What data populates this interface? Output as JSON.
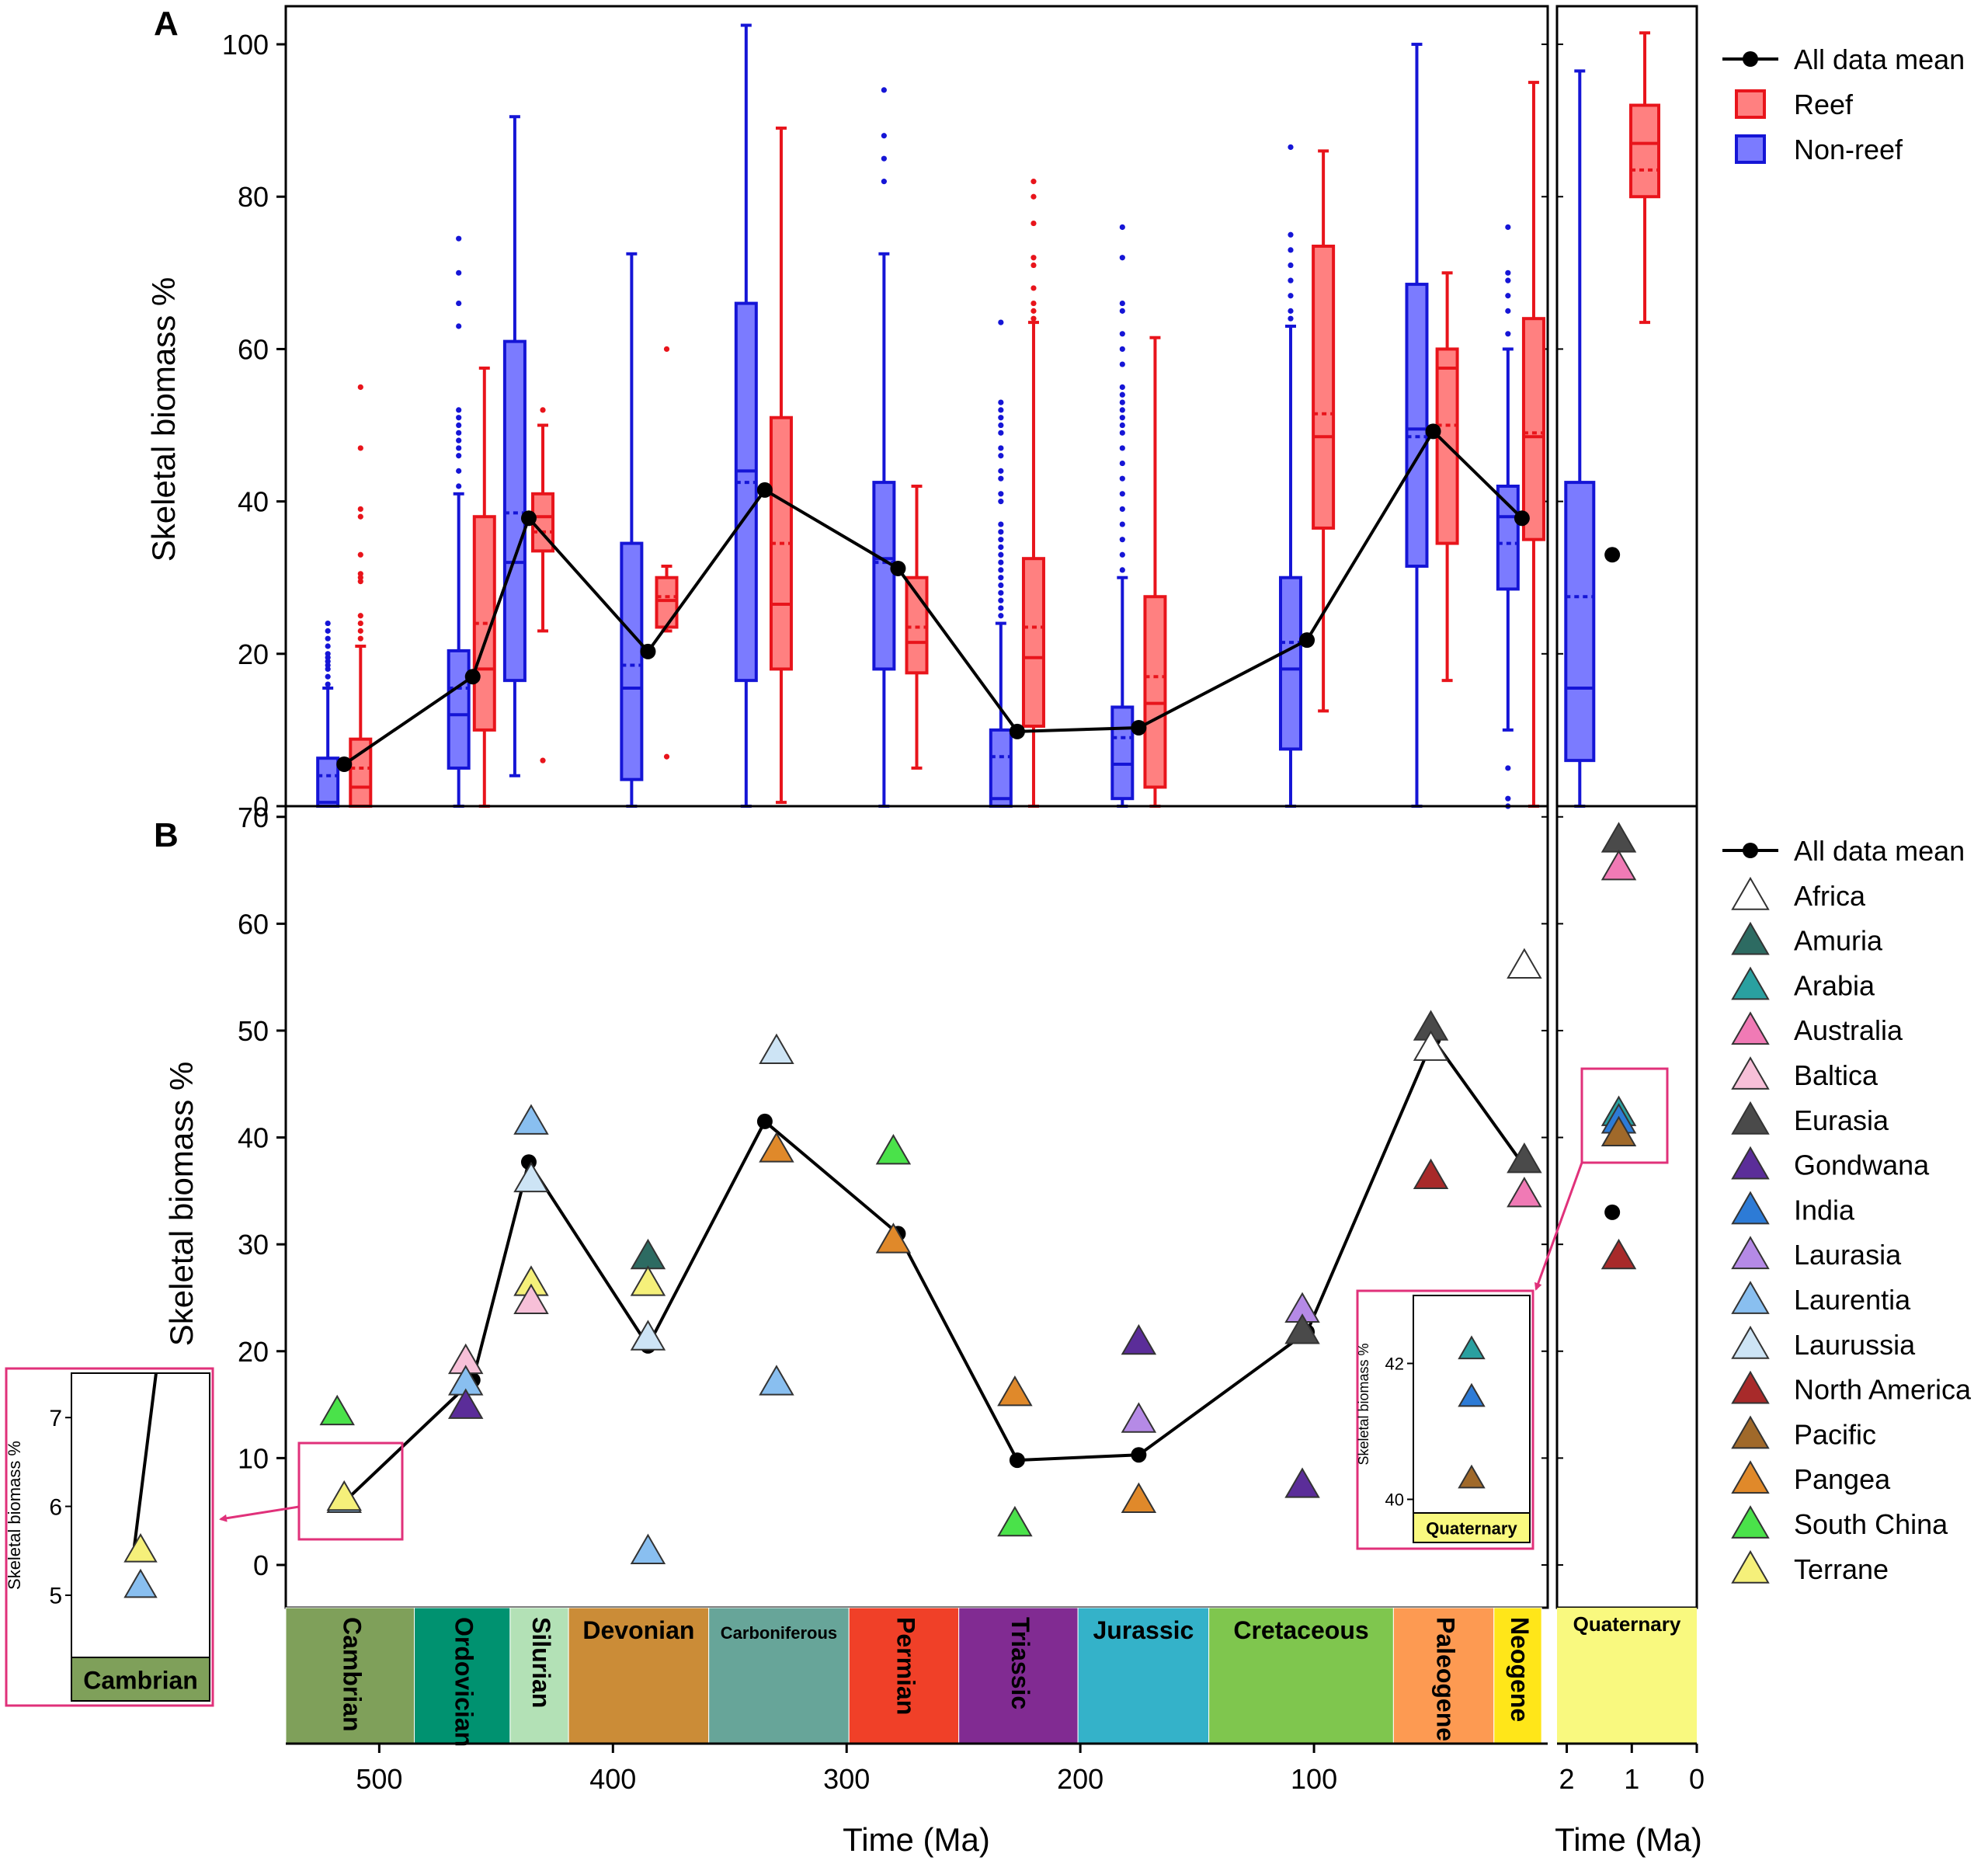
{
  "chart_data": [
    {
      "panel": "A",
      "type": "box",
      "ylabel": "Skeletal biomass %",
      "ylim": [
        0,
        105
      ],
      "yticks": [
        0,
        20,
        40,
        60,
        80,
        100
      ],
      "xlim": [
        540,
        0
      ],
      "legend": [
        {
          "label": "All data mean",
          "kind": "mean"
        },
        {
          "label": "Reef",
          "kind": "reef"
        },
        {
          "label": "Non-reef",
          "kind": "nonreef"
        }
      ],
      "colors": {
        "reef_fill": "#ff8080",
        "reef_edge": "#e8141b",
        "nonreef_fill": "#7b7bff",
        "nonreef_edge": "#1515d6"
      },
      "boxes": [
        {
          "t": 522,
          "group": "nonreef",
          "whiskerLow": 0,
          "q1": 0,
          "median": 0.5,
          "mean": 4,
          "q3": 6.3,
          "whiskerHigh": 15.5,
          "outliers": [
            16,
            17,
            18,
            18.5,
            19,
            19.5,
            20,
            21,
            22,
            23,
            24
          ]
        },
        {
          "t": 508,
          "group": "reef",
          "whiskerLow": 0,
          "q1": 0,
          "median": 2.5,
          "mean": 5,
          "q3": 8.8,
          "whiskerHigh": 21,
          "outliers": [
            22,
            23,
            24,
            25,
            29.5,
            30,
            30.5,
            33,
            38,
            39,
            47,
            55
          ]
        },
        {
          "t": 466,
          "group": "nonreef",
          "whiskerLow": 0,
          "q1": 5,
          "median": 12,
          "mean": 15.5,
          "q3": 20.4,
          "whiskerHigh": 41,
          "outliers": [
            42,
            44,
            46,
            47,
            48,
            49,
            50,
            51,
            52,
            63,
            66,
            70,
            74.5
          ]
        },
        {
          "t": 455,
          "group": "reef",
          "whiskerLow": 0,
          "q1": 10,
          "median": 18,
          "mean": 24,
          "q3": 38,
          "whiskerHigh": 57.5,
          "outliers": []
        },
        {
          "t": 442,
          "group": "nonreef",
          "whiskerLow": 4,
          "q1": 16.5,
          "median": 32,
          "mean": 38.5,
          "q3": 61,
          "whiskerHigh": 90.5,
          "outliers": []
        },
        {
          "t": 430,
          "group": "reef",
          "whiskerLow": 23,
          "q1": 33.5,
          "median": 38,
          "mean": 36,
          "q3": 41,
          "whiskerHigh": 50,
          "outliers": [
            6,
            52
          ]
        },
        {
          "t": 392,
          "group": "nonreef",
          "whiskerLow": 0,
          "q1": 3.5,
          "median": 15.5,
          "mean": 18.5,
          "q3": 34.5,
          "whiskerHigh": 72.5,
          "outliers": []
        },
        {
          "t": 377,
          "group": "reef",
          "whiskerLow": 23,
          "q1": 23.5,
          "median": 27,
          "mean": 27.5,
          "q3": 30,
          "whiskerHigh": 31.5,
          "outliers": [
            6.5,
            60
          ]
        },
        {
          "t": 343,
          "group": "nonreef",
          "whiskerLow": 0,
          "q1": 16.5,
          "median": 44,
          "mean": 42.5,
          "q3": 66,
          "whiskerHigh": 102.5,
          "outliers": []
        },
        {
          "t": 328,
          "group": "reef",
          "whiskerLow": 0.5,
          "q1": 18,
          "median": 26.5,
          "mean": 34.5,
          "q3": 51,
          "whiskerHigh": 89,
          "outliers": []
        },
        {
          "t": 284,
          "group": "nonreef",
          "whiskerLow": 0,
          "q1": 18,
          "median": 32.5,
          "mean": 32,
          "q3": 42.5,
          "whiskerHigh": 72.5,
          "outliers": [
            82,
            85,
            88,
            94
          ]
        },
        {
          "t": 270,
          "group": "reef",
          "whiskerLow": 5,
          "q1": 17.5,
          "median": 21.5,
          "mean": 23.5,
          "q3": 30,
          "whiskerHigh": 42,
          "outliers": []
        },
        {
          "t": 234,
          "group": "nonreef",
          "whiskerLow": 0,
          "q1": 0,
          "median": 1,
          "mean": 6.5,
          "q3": 10,
          "whiskerHigh": 24,
          "outliers": [
            25,
            26,
            27,
            28,
            29,
            30,
            31,
            32,
            33,
            34,
            35,
            36,
            37,
            40,
            41,
            43,
            44,
            46,
            47,
            49,
            50,
            51,
            52,
            53,
            63.5
          ]
        },
        {
          "t": 220,
          "group": "reef",
          "whiskerLow": 0,
          "q1": 10.5,
          "median": 19.5,
          "mean": 23.5,
          "q3": 32.5,
          "whiskerHigh": 63.5,
          "outliers": [
            64,
            65,
            66,
            68,
            71,
            72,
            76.5,
            80,
            82
          ]
        },
        {
          "t": 182,
          "group": "nonreef",
          "whiskerLow": 0,
          "q1": 1,
          "median": 5.5,
          "mean": 9,
          "q3": 13,
          "whiskerHigh": 30,
          "outliers": [
            31,
            33,
            35,
            37,
            39,
            41,
            43,
            45,
            47,
            49,
            50,
            51,
            52,
            53,
            54,
            55,
            58,
            60,
            62,
            65,
            66,
            72,
            76
          ]
        },
        {
          "t": 168,
          "group": "reef",
          "whiskerLow": 0,
          "q1": 2.5,
          "median": 13.5,
          "mean": 17,
          "q3": 27.5,
          "whiskerHigh": 61.5,
          "outliers": []
        },
        {
          "t": 110,
          "group": "nonreef",
          "whiskerLow": 0,
          "q1": 7.5,
          "median": 18,
          "mean": 21.5,
          "q3": 30,
          "whiskerHigh": 63,
          "outliers": [
            64,
            65,
            67,
            69,
            71,
            73,
            75,
            86.5
          ]
        },
        {
          "t": 96,
          "group": "reef",
          "whiskerLow": 12.5,
          "q1": 36.5,
          "median": 48.5,
          "mean": 51.5,
          "q3": 73.5,
          "whiskerHigh": 86,
          "outliers": []
        },
        {
          "t": 56,
          "group": "nonreef",
          "whiskerLow": 0,
          "q1": 31.5,
          "median": 49.5,
          "mean": 48.5,
          "q3": 68.5,
          "whiskerHigh": 100,
          "outliers": []
        },
        {
          "t": 43,
          "group": "reef",
          "whiskerLow": 16.5,
          "q1": 34.5,
          "median": 57.5,
          "mean": 50,
          "q3": 60,
          "whiskerHigh": 70,
          "outliers": []
        },
        {
          "t": 17,
          "group": "nonreef",
          "whiskerLow": 10,
          "q1": 28.5,
          "median": 38,
          "mean": 34.5,
          "q3": 42,
          "whiskerHigh": 60,
          "outliers": [
            0,
            1,
            5,
            62,
            65,
            67,
            69,
            70,
            76
          ]
        },
        {
          "t": 6,
          "group": "reef",
          "whiskerLow": 0,
          "q1": 35,
          "median": 48.5,
          "mean": 49,
          "q3": 64,
          "whiskerHigh": 95,
          "outliers": []
        }
      ],
      "mean_line": {
        "t": [
          515,
          460,
          436,
          385,
          335,
          278,
          227,
          175,
          103,
          49,
          11
        ],
        "values": [
          5.5,
          17,
          37.8,
          20.3,
          41.5,
          31.2,
          9.8,
          10.3,
          21.8,
          49.2,
          37.8
        ]
      },
      "quaternary": {
        "xlim": [
          2.15,
          0
        ],
        "xticks": [
          2,
          1,
          0
        ],
        "boxes": [
          {
            "t": 1.8,
            "group": "nonreef",
            "whiskerLow": 0,
            "q1": 6,
            "median": 15.5,
            "mean": 27.5,
            "q3": 42.5,
            "whiskerHigh": 96.5,
            "outliers": []
          },
          {
            "t": 0.8,
            "group": "reef",
            "whiskerLow": 63.5,
            "q1": 80,
            "median": 87,
            "mean": 83.5,
            "q3": 92,
            "whiskerHigh": 101.5,
            "outliers": []
          }
        ],
        "mean": {
          "t": 1.3,
          "value": 33
        }
      }
    },
    {
      "panel": "B",
      "type": "scatter",
      "ylabel": "Skeletal biomass %",
      "xlabel": "Time (Ma)",
      "ylim": [
        -4,
        71
      ],
      "yticks": [
        0,
        10,
        20,
        30,
        40,
        50,
        60,
        70
      ],
      "xlim": [
        540,
        0
      ],
      "xticks": [
        500,
        400,
        300,
        200,
        100
      ],
      "legend": [
        {
          "label": "All data mean",
          "color": "#000000",
          "mean": true
        },
        {
          "label": "Africa",
          "color": "#ffffff"
        },
        {
          "label": "Amuria",
          "color": "#2d6b62"
        },
        {
          "label": "Arabia",
          "color": "#2aa0a0"
        },
        {
          "label": "Australia",
          "color": "#f07ab5"
        },
        {
          "label": "Baltica",
          "color": "#f7c0d8"
        },
        {
          "label": "Eurasia",
          "color": "#4a4a4a"
        },
        {
          "label": "Gondwana",
          "color": "#5b2d99"
        },
        {
          "label": "India",
          "color": "#2d7bd6"
        },
        {
          "label": "Laurasia",
          "color": "#b58ae6"
        },
        {
          "label": "Laurentia",
          "color": "#89bff0"
        },
        {
          "label": "Laurussia",
          "color": "#cde4f5"
        },
        {
          "label": "North America",
          "color": "#a82a2a"
        },
        {
          "label": "Pacific",
          "color": "#a0692a"
        },
        {
          "label": "Pangea",
          "color": "#e0892a"
        },
        {
          "label": "South China",
          "color": "#4ae24a"
        },
        {
          "label": "Terrane",
          "color": "#f5f07a"
        }
      ],
      "points": [
        {
          "t": 518,
          "v": 14.2,
          "c": "South China"
        },
        {
          "t": 515,
          "v": 6.0,
          "c": "Laurentia"
        },
        {
          "t": 515,
          "v": 6.2,
          "c": "Terrane"
        },
        {
          "t": 463,
          "v": 19.0,
          "c": "Baltica"
        },
        {
          "t": 463,
          "v": 17.0,
          "c": "Laurentia"
        },
        {
          "t": 463,
          "v": 14.8,
          "c": "Gondwana"
        },
        {
          "t": 435,
          "v": 41.4,
          "c": "Laurentia"
        },
        {
          "t": 435,
          "v": 36.0,
          "c": "Laurussia"
        },
        {
          "t": 435,
          "v": 26.3,
          "c": "Terrane"
        },
        {
          "t": 435,
          "v": 24.6,
          "c": "Baltica"
        },
        {
          "t": 385,
          "v": 28.8,
          "c": "Amuria"
        },
        {
          "t": 385,
          "v": 26.3,
          "c": "Terrane"
        },
        {
          "t": 385,
          "v": 21.2,
          "c": "Laurussia"
        },
        {
          "t": 385,
          "v": 1.2,
          "c": "Laurentia"
        },
        {
          "t": 330,
          "v": 48.0,
          "c": "Laurussia"
        },
        {
          "t": 330,
          "v": 38.8,
          "c": "Pangea"
        },
        {
          "t": 330,
          "v": 17.0,
          "c": "Laurentia"
        },
        {
          "t": 280,
          "v": 38.6,
          "c": "South China"
        },
        {
          "t": 280,
          "v": 30.3,
          "c": "Pangea"
        },
        {
          "t": 228,
          "v": 16.0,
          "c": "Pangea"
        },
        {
          "t": 228,
          "v": 3.8,
          "c": "South China"
        },
        {
          "t": 175,
          "v": 20.8,
          "c": "Gondwana"
        },
        {
          "t": 175,
          "v": 13.5,
          "c": "Laurasia"
        },
        {
          "t": 175,
          "v": 6.0,
          "c": "Pangea"
        },
        {
          "t": 105,
          "v": 23.8,
          "c": "Laurasia"
        },
        {
          "t": 105,
          "v": 21.8,
          "c": "Eurasia"
        },
        {
          "t": 105,
          "v": 7.4,
          "c": "Gondwana"
        },
        {
          "t": 50,
          "v": 50.2,
          "c": "Eurasia"
        },
        {
          "t": 50,
          "v": 48.3,
          "c": "Africa"
        },
        {
          "t": 50,
          "v": 36.3,
          "c": "North America"
        },
        {
          "t": 10,
          "v": 56.0,
          "c": "Africa"
        },
        {
          "t": 10,
          "v": 37.8,
          "c": "Eurasia"
        },
        {
          "t": 10,
          "v": 34.6,
          "c": "Australia"
        }
      ],
      "mean_line": {
        "t": [
          515,
          460,
          436,
          385,
          335,
          278,
          227,
          175,
          103,
          49,
          11
        ],
        "values": [
          5.9,
          17.3,
          37.7,
          20.5,
          41.5,
          31.0,
          9.8,
          10.3,
          21.8,
          49.2,
          37.6
        ]
      },
      "quaternary": {
        "xlim": [
          2.15,
          0
        ],
        "xticks": [
          2,
          1,
          0
        ],
        "xlabel": "Time (Ma)",
        "points": [
          {
            "t": 1.2,
            "v": 67.8,
            "c": "Eurasia"
          },
          {
            "t": 1.2,
            "v": 65.2,
            "c": "Australia"
          },
          {
            "t": 1.2,
            "v": 42.2,
            "c": "Arabia"
          },
          {
            "t": 1.2,
            "v": 41.5,
            "c": "India"
          },
          {
            "t": 1.2,
            "v": 40.3,
            "c": "Pacific"
          },
          {
            "t": 1.2,
            "v": 28.8,
            "c": "North America"
          }
        ],
        "mean": {
          "t": 1.3,
          "value": 33
        }
      },
      "insets": [
        {
          "name": "cambrian-inset",
          "ylabel": "Skeletal biomass %",
          "ylim": [
            4.3,
            7.5
          ],
          "yticks": [
            5,
            6,
            7
          ],
          "period": "Cambrian",
          "line_bottom": 5.55,
          "line_top": 7.5,
          "points": [
            {
              "v": 5.5,
              "c": "Terrane"
            },
            {
              "v": 5.1,
              "c": "Laurentia"
            }
          ]
        },
        {
          "name": "quaternary-inset",
          "ylabel": "Skeletal biomass %",
          "ylim": [
            39.8,
            43
          ],
          "yticks": [
            40,
            42
          ],
          "period": "Quaternary",
          "points": [
            {
              "v": 42.2,
              "c": "Arabia"
            },
            {
              "v": 41.5,
              "c": "India"
            },
            {
              "v": 40.3,
              "c": "Pacific"
            }
          ]
        }
      ]
    }
  ],
  "panel_labels": {
    "a": "A",
    "b": "B"
  },
  "geologic_periods": [
    {
      "name": "Cambrian",
      "start": 541,
      "end": 485,
      "color": "#7fa05a",
      "vertical": true
    },
    {
      "name": "Ordovician",
      "start": 485,
      "end": 444,
      "color": "#009270",
      "vertical": true
    },
    {
      "name": "Silurian",
      "start": 444,
      "end": 419,
      "color": "#b3e1b6",
      "vertical": true
    },
    {
      "name": "Devonian",
      "start": 419,
      "end": 359,
      "color": "#cb8c37",
      "vertical": false
    },
    {
      "name": "Carboniferous",
      "start": 359,
      "end": 299,
      "color": "#67a599",
      "vertical": false
    },
    {
      "name": "Permian",
      "start": 299,
      "end": 252,
      "color": "#f04028",
      "vertical": true
    },
    {
      "name": "Triassic",
      "start": 252,
      "end": 201,
      "color": "#812b92",
      "vertical": true
    },
    {
      "name": "Jurassic",
      "start": 201,
      "end": 145,
      "color": "#34b2c9",
      "vertical": false
    },
    {
      "name": "Cretaceous",
      "start": 145,
      "end": 66,
      "color": "#7fc64e",
      "vertical": false
    },
    {
      "name": "Paleogene",
      "start": 66,
      "end": 23,
      "color": "#fd9a52",
      "vertical": true
    },
    {
      "name": "Neogene",
      "start": 23,
      "end": 2.6,
      "color": "#ffe619",
      "vertical": true
    }
  ],
  "quaternary_period": {
    "name": "Quaternary",
    "color": "#f9f97f"
  }
}
